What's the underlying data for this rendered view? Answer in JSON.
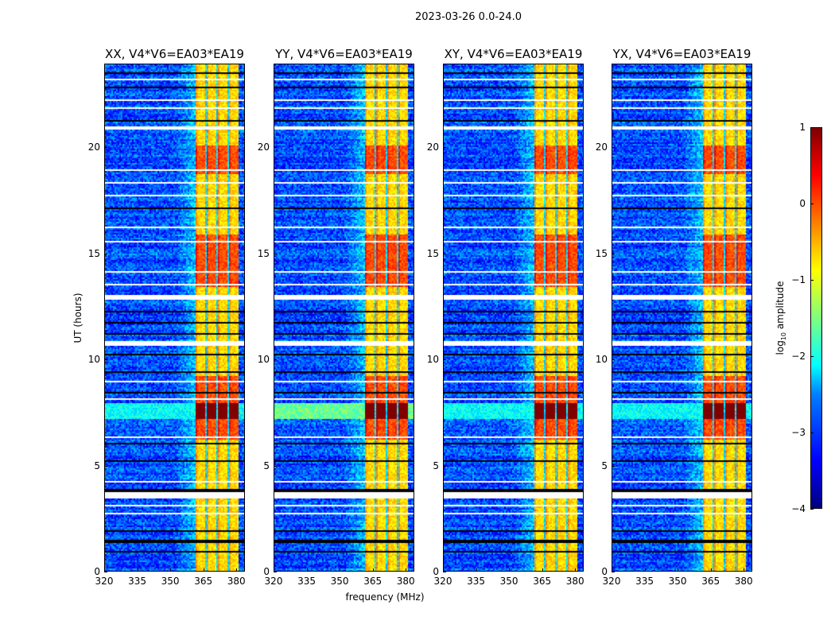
{
  "figure": {
    "suptitle": "2023-03-26 0.0-24.0",
    "xlabel": "frequency (MHz)",
    "ylabel": "UT (hours)"
  },
  "chart_data": {
    "type": "heatmap",
    "colormap": "jet",
    "panels": [
      {
        "title": "XX, V4*V6=EA03*EA19"
      },
      {
        "title": "YY, V4*V6=EA03*EA19"
      },
      {
        "title": "XY, V4*V6=EA03*EA19"
      },
      {
        "title": "YX, V4*V6=EA03*EA19"
      }
    ],
    "xlim": [
      320,
      384
    ],
    "ylim": [
      0,
      24
    ],
    "xticks": [
      "320",
      "335",
      "350",
      "365",
      "380"
    ],
    "xtick_values": [
      320,
      335,
      350,
      365,
      380
    ],
    "yticks": [
      "0",
      "5",
      "10",
      "15",
      "20"
    ],
    "ytick_values": [
      0,
      5,
      10,
      15,
      20
    ],
    "background_log_amplitude": -3.0,
    "bright_band_MHz": [
      360.5,
      380
    ],
    "bright_band_log_amplitude": -0.3,
    "blank_rows_hours": [
      [
        3.55,
        3.8
      ],
      [
        10.7,
        10.95
      ],
      [
        12.9,
        13.1
      ],
      [
        20.9,
        21.1
      ]
    ],
    "rfi_rows_hours": [
      [
        7.3,
        8.0
      ]
    ],
    "colorbar": {
      "label": "log10 amplitude",
      "label_main": "log",
      "label_sub": "10",
      "label_rest": " amplitude",
      "range": [
        -4,
        1
      ],
      "ticks": [
        "1",
        "0",
        "−1",
        "−2",
        "−3",
        "−4"
      ],
      "tick_values": [
        1,
        0,
        -1,
        -2,
        -3,
        -4
      ]
    }
  }
}
